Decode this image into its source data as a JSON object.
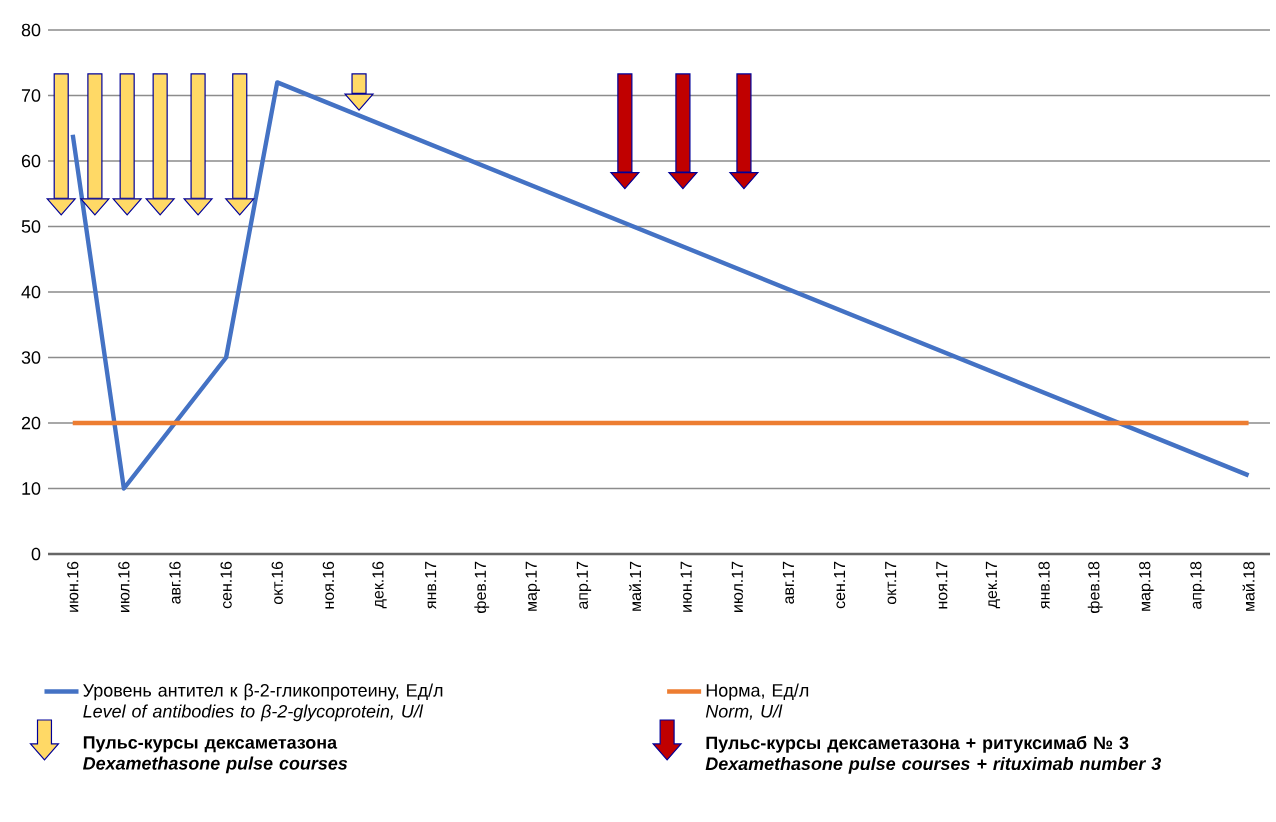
{
  "chart_data": {
    "type": "line",
    "xlim": [
      "2016-05-17",
      "2018-05-14"
    ],
    "xticks": [
      {
        "value": "2016-06",
        "label": "июн.16"
      },
      {
        "value": "2016-07",
        "label": "июл.16"
      },
      {
        "value": "2016-08",
        "label": "авг.16"
      },
      {
        "value": "2016-09",
        "label": "сен.16"
      },
      {
        "value": "2016-10",
        "label": "окт.16"
      },
      {
        "value": "2016-11",
        "label": "ноя.16"
      },
      {
        "value": "2016-12",
        "label": "дек.16"
      },
      {
        "value": "2017-01",
        "label": "янв.17"
      },
      {
        "value": "2017-02",
        "label": "фев.17"
      },
      {
        "value": "2017-03",
        "label": "мар.17"
      },
      {
        "value": "2017-04",
        "label": "апр.17"
      },
      {
        "value": "2017-05",
        "label": "май.17"
      },
      {
        "value": "2017-06",
        "label": "июн.17"
      },
      {
        "value": "2017-07",
        "label": "июл.17"
      },
      {
        "value": "2017-08",
        "label": "авг.17"
      },
      {
        "value": "2017-09",
        "label": "сен.17"
      },
      {
        "value": "2017-10",
        "label": "окт.17"
      },
      {
        "value": "2017-11",
        "label": "ноя.17"
      },
      {
        "value": "2017-12",
        "label": "дек.17"
      },
      {
        "value": "2018-01",
        "label": "янв.18"
      },
      {
        "value": "2018-02",
        "label": "фев.18"
      },
      {
        "value": "2018-03",
        "label": "мар.18"
      },
      {
        "value": "2018-04",
        "label": "апр.18"
      },
      {
        "value": "2018-05",
        "label": "май.18"
      }
    ],
    "ylim": [
      0,
      80
    ],
    "yticks": [
      0,
      10,
      20,
      30,
      40,
      50,
      60,
      70,
      80
    ],
    "grid": "y",
    "legend": "bottom",
    "series": [
      {
        "name": "Уровень антител к β-2-гликопротеину, Ед/л\n*Level of antibodies to β-2-glycoprotein, U/l*",
        "color": "#4472c4",
        "x": [
          "2016-06",
          "2016-07",
          "2016-09",
          "2016-10",
          "2018-05"
        ],
        "values": [
          64,
          10,
          30,
          72,
          12
        ]
      },
      {
        "name": "Норма, Ед/л\n*Norm, U/l*",
        "color": "#ed7d31",
        "x": [
          "2016-06",
          "2018-05"
        ],
        "values": [
          20,
          20
        ]
      },
      {
        "name": "Пульс-курсы дексаметазона\n*Dexamethasone pulse courses*",
        "type": "scatter",
        "color": "#ffd966",
        "x": [
          "2016-05-25",
          "2016-06-14",
          "2016-07-03",
          "2016-07-23",
          "2016-08-15",
          "2016-09-09",
          "2016-11-19"
        ],
        "values": [
          53,
          53,
          53,
          53,
          53,
          53,
          69
        ]
      },
      {
        "name": "Пульс-курсы дексаметазона + ритуксимаб № 3\n*Dexamethasone pulse courses + rituximab number 3*",
        "type": "scatter",
        "color": "#c00000",
        "x": [
          "2017-04-25",
          "2017-05-30",
          "2017-07-05"
        ],
        "values": [
          57,
          57,
          57
        ]
      }
    ]
  }
}
